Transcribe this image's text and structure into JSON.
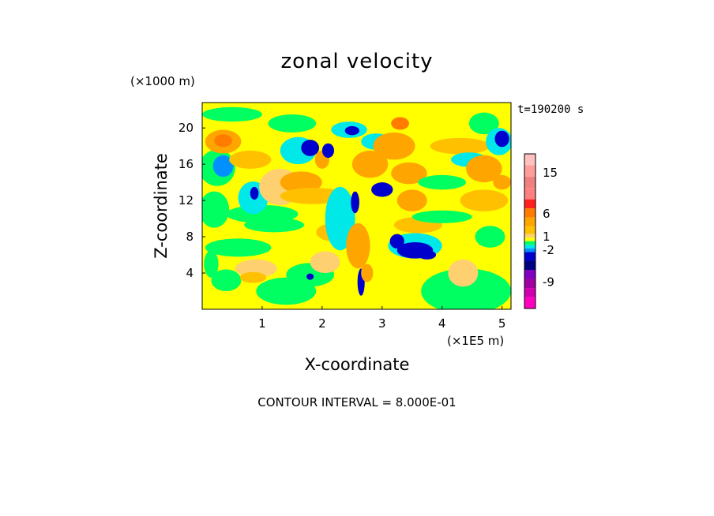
{
  "chart_data": {
    "type": "heatmap",
    "title": "zonal velocity",
    "xlabel": "X-coordinate",
    "ylabel": "Z-coordinate",
    "x_units": "(×1E5 m)",
    "y_units": "(×1000 m)",
    "time_label": "t=190200 s",
    "footer": "CONTOUR INTERVAL = 8.000E-01",
    "xlim": [
      0,
      5.15
    ],
    "ylim": [
      0,
      22.8
    ],
    "xticks": [
      1,
      2,
      3,
      4,
      5
    ],
    "yticks": [
      4,
      8,
      12,
      16,
      20
    ],
    "colorbar": {
      "tick_labels": [
        "15",
        "6",
        "1",
        "-2",
        "-9"
      ],
      "tick_values": [
        15,
        6,
        1,
        -2,
        -9
      ],
      "bands": [
        {
          "lo": 16.5,
          "hi": 19,
          "color": "#ffc0c0"
        },
        {
          "lo": 14,
          "hi": 16.5,
          "color": "#ff9c9c"
        },
        {
          "lo": 11.5,
          "hi": 14,
          "color": "#f08080"
        },
        {
          "lo": 9,
          "hi": 11.5,
          "color": "#ff8080"
        },
        {
          "lo": 7,
          "hi": 9,
          "color": "#ff2020"
        },
        {
          "lo": 5,
          "hi": 7,
          "color": "#ff7c00"
        },
        {
          "lo": 3,
          "hi": 5,
          "color": "#ffa500"
        },
        {
          "lo": 1.4,
          "hi": 3,
          "color": "#ffc000"
        },
        {
          "lo": 0.6,
          "hi": 1.4,
          "color": "#ffd070"
        },
        {
          "lo": -0.2,
          "hi": 0.6,
          "color": "#ffff00"
        },
        {
          "lo": -1.0,
          "hi": -0.2,
          "color": "#00ff60"
        },
        {
          "lo": -1.8,
          "hi": -1.0,
          "color": "#00e8e8"
        },
        {
          "lo": -2.6,
          "hi": -1.8,
          "color": "#0090ff"
        },
        {
          "lo": -4.5,
          "hi": -2.6,
          "color": "#0000cc"
        },
        {
          "lo": -6.5,
          "hi": -4.5,
          "color": "#000080"
        },
        {
          "lo": -8.5,
          "hi": -6.5,
          "color": "#8000c0"
        },
        {
          "lo": -10.5,
          "hi": -8.5,
          "color": "#a000a0"
        },
        {
          "lo": -12.5,
          "hi": -10.5,
          "color": "#d000b0"
        },
        {
          "lo": -15,
          "hi": -12.5,
          "color": "#ff00c0"
        }
      ]
    },
    "background_color": "#ffff00",
    "regions": [
      {
        "x": 0.2,
        "z": 11,
        "rx": 0.25,
        "ry": 2,
        "v": -1.0
      },
      {
        "x": 0.15,
        "z": 5,
        "rx": 0.12,
        "ry": 1.5,
        "v": -0.6
      },
      {
        "x": 0.4,
        "z": 3.2,
        "rx": 0.25,
        "ry": 1.2,
        "v": -0.5
      },
      {
        "x": 0.6,
        "z": 6.8,
        "rx": 0.55,
        "ry": 1.0,
        "v": -0.6
      },
      {
        "x": 1.0,
        "z": 10.5,
        "rx": 0.6,
        "ry": 1.0,
        "v": -0.6
      },
      {
        "x": 0.25,
        "z": 15.6,
        "rx": 0.3,
        "ry": 2.0,
        "v": -1.0
      },
      {
        "x": 0.35,
        "z": 15.8,
        "rx": 0.17,
        "ry": 1.2,
        "v": -2.4
      },
      {
        "x": 0.35,
        "z": 18.5,
        "rx": 0.3,
        "ry": 1.3,
        "v": 3.5
      },
      {
        "x": 0.35,
        "z": 18.6,
        "rx": 0.15,
        "ry": 0.7,
        "v": 6
      },
      {
        "x": 0.5,
        "z": 21.5,
        "rx": 0.5,
        "ry": 0.8,
        "v": -0.6
      },
      {
        "x": 0.85,
        "z": 12.3,
        "rx": 0.25,
        "ry": 1.8,
        "v": -1.4
      },
      {
        "x": 0.87,
        "z": 12.8,
        "rx": 0.07,
        "ry": 0.7,
        "v": -3
      },
      {
        "x": 0.8,
        "z": 16.5,
        "rx": 0.35,
        "ry": 1.0,
        "v": 2
      },
      {
        "x": 0.9,
        "z": 4.5,
        "rx": 0.35,
        "ry": 1.0,
        "v": 1
      },
      {
        "x": 0.85,
        "z": 3.5,
        "rx": 0.22,
        "ry": 0.6,
        "v": 2
      },
      {
        "x": 1.3,
        "z": 13.5,
        "rx": 0.35,
        "ry": 2.0,
        "v": 1
      },
      {
        "x": 1.2,
        "z": 9.3,
        "rx": 0.5,
        "ry": 0.8,
        "v": -0.6
      },
      {
        "x": 1.5,
        "z": 20.5,
        "rx": 0.4,
        "ry": 1.0,
        "v": -0.6
      },
      {
        "x": 1.4,
        "z": 2,
        "rx": 0.5,
        "ry": 1.5,
        "v": -0.6
      },
      {
        "x": 1.65,
        "z": 14,
        "rx": 0.35,
        "ry": 1.2,
        "v": 3
      },
      {
        "x": 1.85,
        "z": 12.5,
        "rx": 0.55,
        "ry": 0.9,
        "v": 2
      },
      {
        "x": 1.6,
        "z": 17.5,
        "rx": 0.3,
        "ry": 1.5,
        "v": -1.5
      },
      {
        "x": 1.8,
        "z": 17.8,
        "rx": 0.15,
        "ry": 0.9,
        "v": -3
      },
      {
        "x": 2.0,
        "z": 16.5,
        "rx": 0.12,
        "ry": 1.0,
        "v": 3
      },
      {
        "x": 2.1,
        "z": 17.5,
        "rx": 0.1,
        "ry": 0.8,
        "v": -3
      },
      {
        "x": 1.8,
        "z": 3.8,
        "rx": 0.4,
        "ry": 1.3,
        "v": -0.6
      },
      {
        "x": 1.8,
        "z": 3.6,
        "rx": 0.06,
        "ry": 0.35,
        "v": -3
      },
      {
        "x": 2.05,
        "z": 5.2,
        "rx": 0.25,
        "ry": 1.2,
        "v": 1
      },
      {
        "x": 2.2,
        "z": 8.5,
        "rx": 0.3,
        "ry": 1.0,
        "v": 2
      },
      {
        "x": 2.45,
        "z": 19.8,
        "rx": 0.3,
        "ry": 0.9,
        "v": -1.4
      },
      {
        "x": 2.5,
        "z": 19.7,
        "rx": 0.12,
        "ry": 0.5,
        "v": -3
      },
      {
        "x": 2.3,
        "z": 10,
        "rx": 0.25,
        "ry": 3.5,
        "v": -1.4
      },
      {
        "x": 2.55,
        "z": 11.8,
        "rx": 0.07,
        "ry": 1.2,
        "v": -3
      },
      {
        "x": 2.6,
        "z": 7,
        "rx": 0.2,
        "ry": 2.5,
        "v": 4
      },
      {
        "x": 2.65,
        "z": 3,
        "rx": 0.06,
        "ry": 1.5,
        "v": -3
      },
      {
        "x": 2.75,
        "z": 4,
        "rx": 0.1,
        "ry": 1.0,
        "v": 3
      },
      {
        "x": 2.8,
        "z": 16,
        "rx": 0.3,
        "ry": 1.5,
        "v": 3
      },
      {
        "x": 2.9,
        "z": 18.5,
        "rx": 0.25,
        "ry": 0.9,
        "v": -1.5
      },
      {
        "x": 3.0,
        "z": 13.2,
        "rx": 0.18,
        "ry": 0.8,
        "v": -3
      },
      {
        "x": 3.2,
        "z": 18,
        "rx": 0.35,
        "ry": 1.5,
        "v": 3
      },
      {
        "x": 3.3,
        "z": 20.5,
        "rx": 0.15,
        "ry": 0.7,
        "v": 5
      },
      {
        "x": 3.45,
        "z": 15,
        "rx": 0.3,
        "ry": 1.2,
        "v": 3
      },
      {
        "x": 3.5,
        "z": 12,
        "rx": 0.25,
        "ry": 1.2,
        "v": 4
      },
      {
        "x": 3.55,
        "z": 7,
        "rx": 0.45,
        "ry": 1.4,
        "v": -1.5
      },
      {
        "x": 3.55,
        "z": 6.5,
        "rx": 0.3,
        "ry": 0.9,
        "v": -3
      },
      {
        "x": 3.25,
        "z": 7.5,
        "rx": 0.12,
        "ry": 0.8,
        "v": -3
      },
      {
        "x": 3.75,
        "z": 6.0,
        "rx": 0.15,
        "ry": 0.5,
        "v": -4
      },
      {
        "x": 3.6,
        "z": 9.3,
        "rx": 0.4,
        "ry": 0.9,
        "v": 2
      },
      {
        "x": 4.0,
        "z": 14,
        "rx": 0.4,
        "ry": 0.8,
        "v": -0.6
      },
      {
        "x": 4.0,
        "z": 10.2,
        "rx": 0.5,
        "ry": 0.7,
        "v": -0.6
      },
      {
        "x": 4.4,
        "z": 2.0,
        "rx": 0.75,
        "ry": 2.5,
        "v": -0.6
      },
      {
        "x": 4.35,
        "z": 4,
        "rx": 0.25,
        "ry": 1.5,
        "v": 1
      },
      {
        "x": 4.3,
        "z": 18,
        "rx": 0.5,
        "ry": 0.9,
        "v": 2
      },
      {
        "x": 4.45,
        "z": 16.5,
        "rx": 0.3,
        "ry": 0.8,
        "v": -1.4
      },
      {
        "x": 4.7,
        "z": 15.5,
        "rx": 0.3,
        "ry": 1.5,
        "v": 3
      },
      {
        "x": 4.7,
        "z": 12,
        "rx": 0.4,
        "ry": 1.2,
        "v": 2
      },
      {
        "x": 4.8,
        "z": 8,
        "rx": 0.25,
        "ry": 1.2,
        "v": -1.0
      },
      {
        "x": 4.7,
        "z": 20.5,
        "rx": 0.25,
        "ry": 1.2,
        "v": -0.6
      },
      {
        "x": 4.95,
        "z": 18.5,
        "rx": 0.22,
        "ry": 1.5,
        "v": -1.5
      },
      {
        "x": 5.0,
        "z": 18.8,
        "rx": 0.12,
        "ry": 0.9,
        "v": -3
      },
      {
        "x": 5.0,
        "z": 14,
        "rx": 0.15,
        "ry": 0.8,
        "v": 4
      }
    ]
  }
}
